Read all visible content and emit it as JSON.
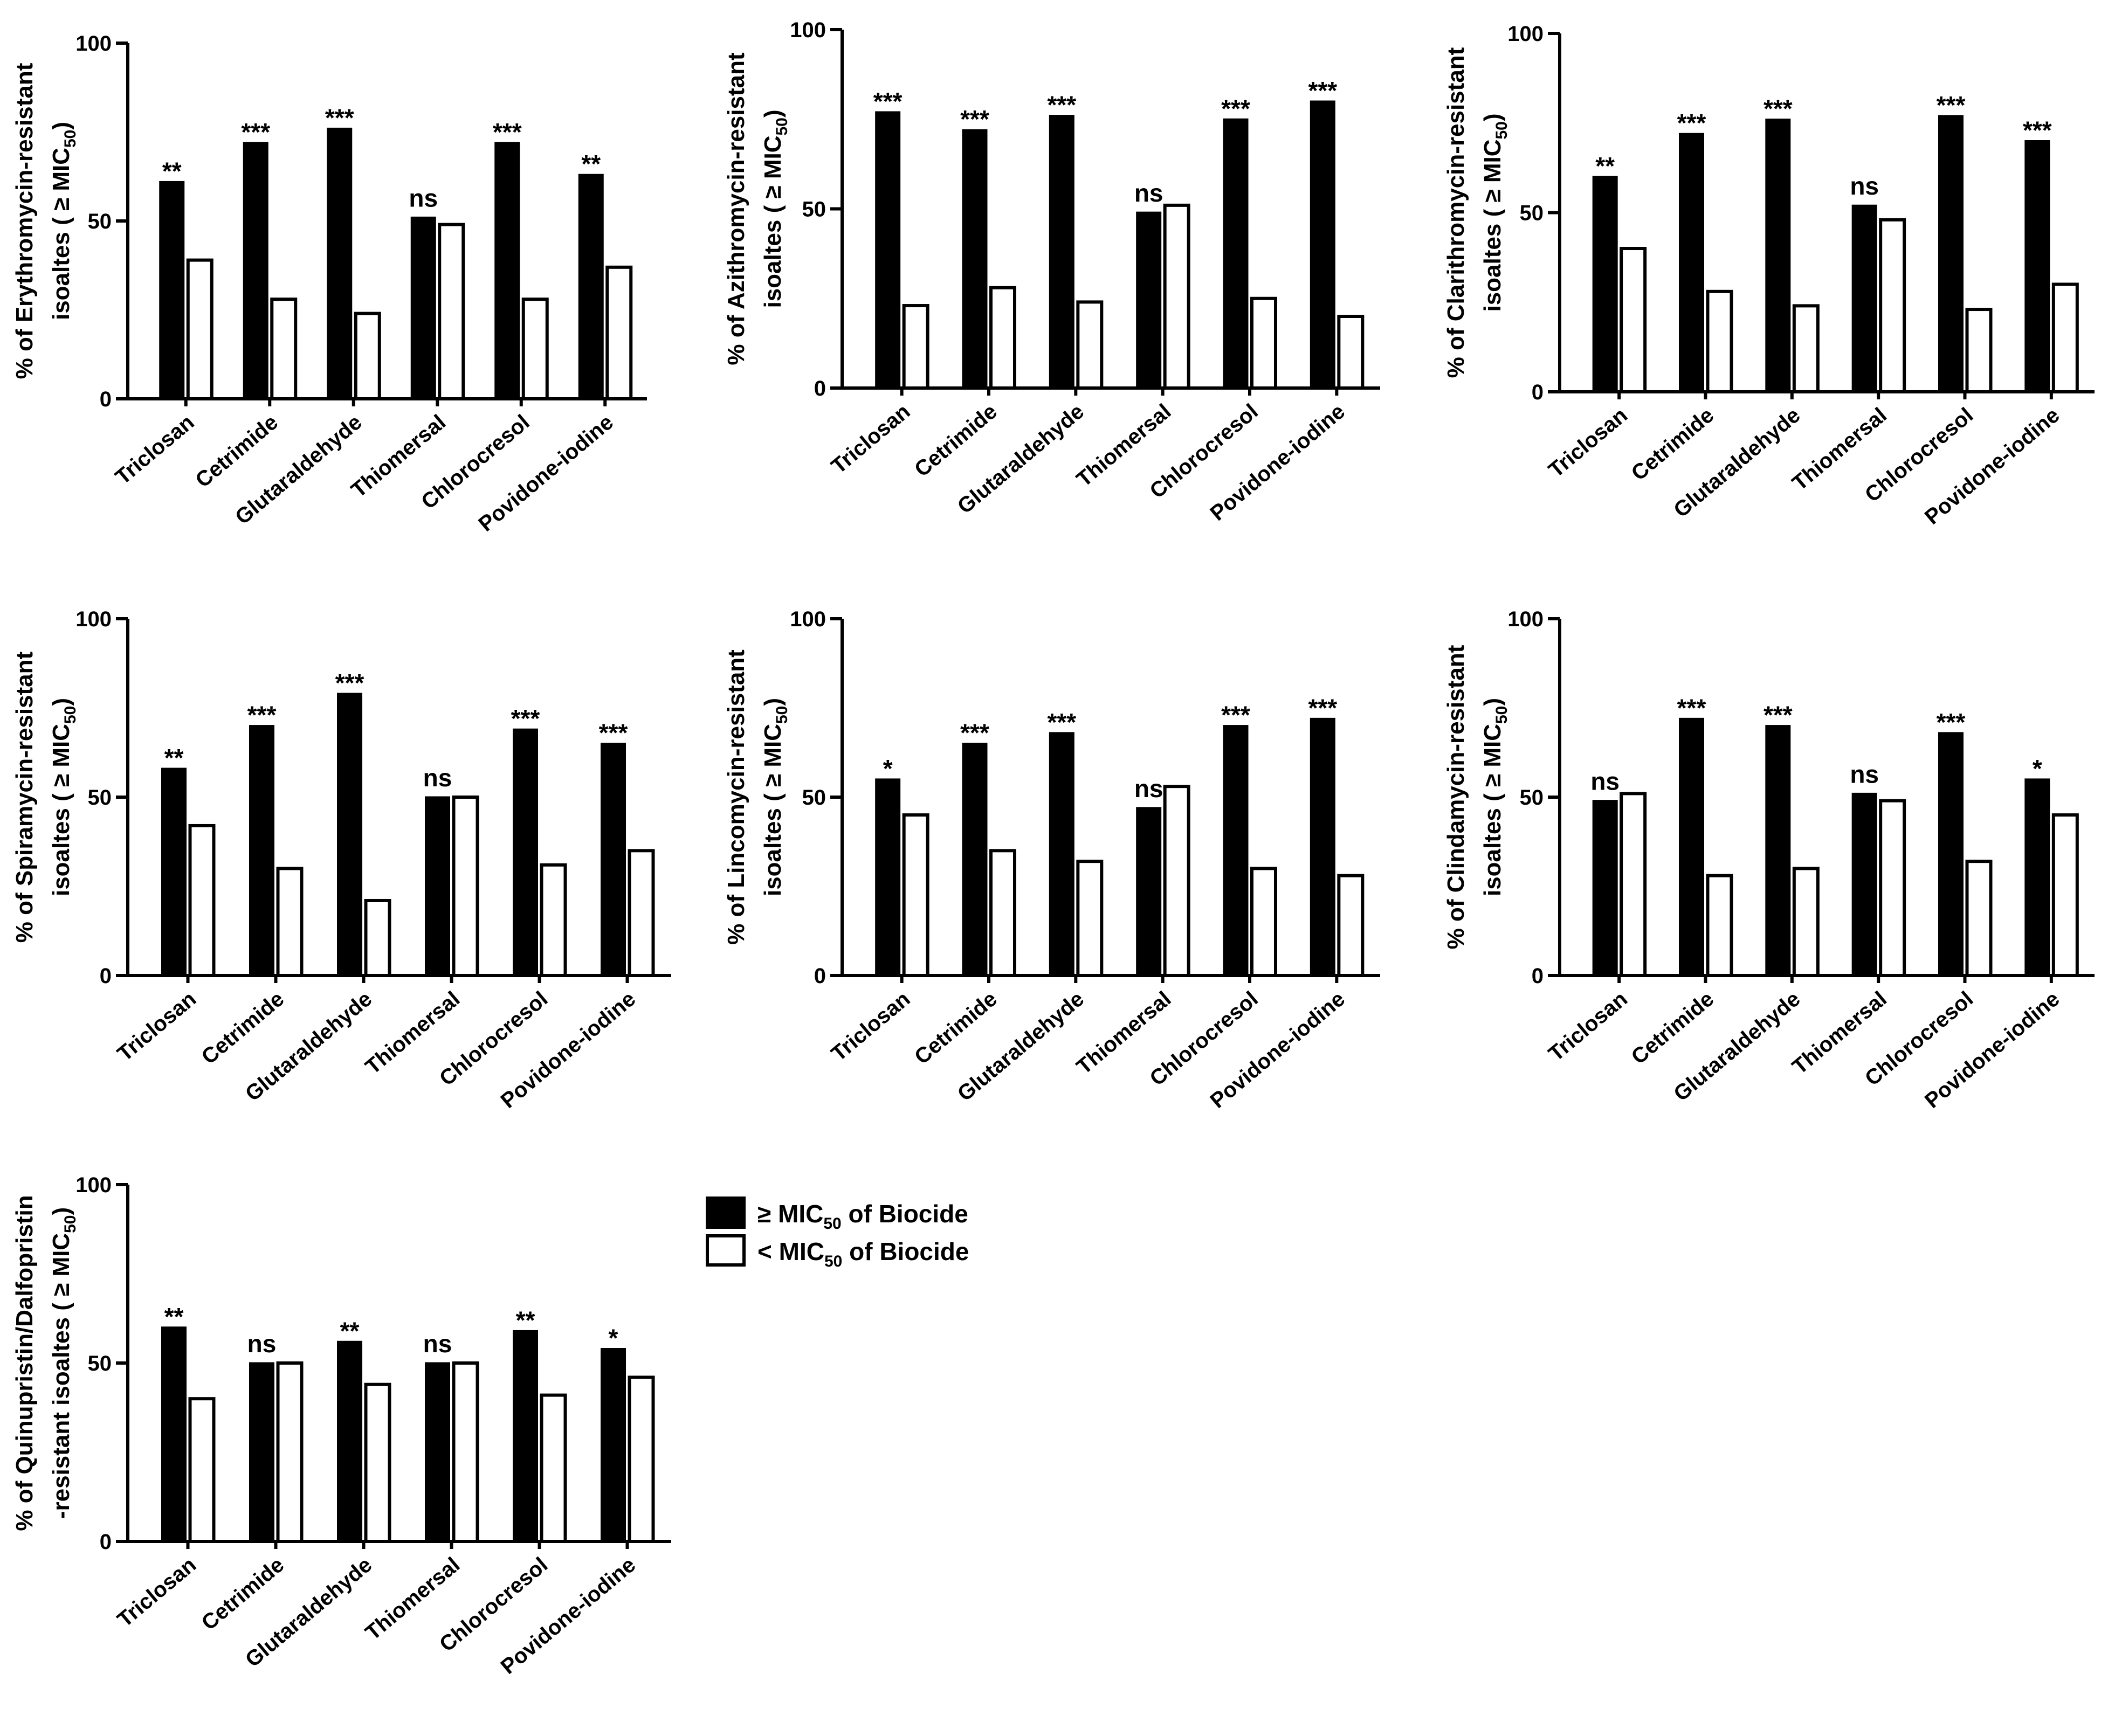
{
  "chart_data": [
    {
      "type": "bar",
      "ylabel": [
        "% of Erythromycin-resistant",
        "isoaltes ( ≥ MIC",
        "50",
        ")"
      ],
      "categories": [
        "Triclosan",
        "Cetrimide",
        "Glutaraldehyde",
        "Thiomersal",
        "Chlorocresol",
        "Povidone-iodine"
      ],
      "series": [
        {
          "name": "≥ MIC50 of Biocide",
          "values": [
            61,
            72,
            76,
            51,
            72,
            63
          ]
        },
        {
          "name": "< MIC50 of Biocide",
          "values": [
            39,
            28,
            24,
            49,
            28,
            37
          ]
        }
      ],
      "significance": [
        "**",
        "***",
        "***",
        "ns",
        "***",
        "**"
      ],
      "ylim": [
        0,
        100
      ],
      "yticks": [
        "0",
        "50",
        "100"
      ]
    },
    {
      "type": "bar",
      "ylabel": [
        "% of Azithromycin-resistant",
        "isoaltes ( ≥ MIC",
        "50",
        ")"
      ],
      "categories": [
        "Triclosan",
        "Cetrimide",
        "Glutaraldehyde",
        "Thiomersal",
        "Chlorocresol",
        "Povidone-iodine"
      ],
      "series": [
        {
          "name": "≥ MIC50 of Biocide",
          "values": [
            77,
            72,
            76,
            49,
            75,
            80
          ]
        },
        {
          "name": "< MIC50 of Biocide",
          "values": [
            23,
            28,
            24,
            51,
            25,
            20
          ]
        }
      ],
      "significance": [
        "***",
        "***",
        "***",
        "ns",
        "***",
        "***"
      ],
      "ylim": [
        0,
        100
      ],
      "yticks": [
        "0",
        "50",
        "100"
      ]
    },
    {
      "type": "bar",
      "ylabel": [
        "% of Clarithromycin-resistant",
        "isoaltes ( ≥ MIC",
        "50",
        ")"
      ],
      "categories": [
        "Triclosan",
        "Cetrimide",
        "Glutaraldehyde",
        "Thiomersal",
        "Chlorocresol",
        "Povidone-iodine"
      ],
      "series": [
        {
          "name": "≥ MIC50 of Biocide",
          "values": [
            60,
            72,
            76,
            52,
            77,
            70
          ]
        },
        {
          "name": "< MIC50 of Biocide",
          "values": [
            40,
            28,
            24,
            48,
            23,
            30
          ]
        }
      ],
      "significance": [
        "**",
        "***",
        "***",
        "ns",
        "***",
        "***"
      ],
      "ylim": [
        0,
        100
      ],
      "yticks": [
        "0",
        "50",
        "100"
      ]
    },
    {
      "type": "bar",
      "ylabel": [
        "% of Spiramycin-resistant",
        "isoaltes ( ≥ MIC",
        "50",
        ")"
      ],
      "categories": [
        "Triclosan",
        "Cetrimide",
        "Glutaraldehyde",
        "Thiomersal",
        "Chlorocresol",
        "Povidone-iodine"
      ],
      "series": [
        {
          "name": "≥ MIC50 of Biocide",
          "values": [
            58,
            70,
            79,
            50,
            69,
            65
          ]
        },
        {
          "name": "< MIC50 of Biocide",
          "values": [
            42,
            30,
            21,
            50,
            31,
            35
          ]
        }
      ],
      "significance": [
        "**",
        "***",
        "***",
        "ns",
        "***",
        "***"
      ],
      "ylim": [
        0,
        100
      ],
      "yticks": [
        "0",
        "50",
        "100"
      ]
    },
    {
      "type": "bar",
      "ylabel": [
        "% of Lincomycin-resistant",
        "isoaltes ( ≥ MIC",
        "50",
        ")"
      ],
      "categories": [
        "Triclosan",
        "Cetrimide",
        "Glutaraldehyde",
        "Thiomersal",
        "Chlorocresol",
        "Povidone-iodine"
      ],
      "series": [
        {
          "name": "≥ MIC50 of Biocide",
          "values": [
            55,
            65,
            68,
            47,
            70,
            72
          ]
        },
        {
          "name": "< MIC50 of Biocide",
          "values": [
            45,
            35,
            32,
            53,
            30,
            28
          ]
        }
      ],
      "significance": [
        "*",
        "***",
        "***",
        "ns",
        "***",
        "***"
      ],
      "ylim": [
        0,
        100
      ],
      "yticks": [
        "0",
        "50",
        "100"
      ]
    },
    {
      "type": "bar",
      "ylabel": [
        "% of Clindamycin-resistant",
        "isoaltes ( ≥ MIC",
        "50",
        ")"
      ],
      "categories": [
        "Triclosan",
        "Cetrimide",
        "Glutaraldehyde",
        "Thiomersal",
        "Chlorocresol",
        "Povidone-iodine"
      ],
      "series": [
        {
          "name": "≥ MIC50 of Biocide",
          "values": [
            49,
            72,
            70,
            51,
            68,
            55
          ]
        },
        {
          "name": "< MIC50 of Biocide",
          "values": [
            51,
            28,
            30,
            49,
            32,
            45
          ]
        }
      ],
      "significance": [
        "ns",
        "***",
        "***",
        "ns",
        "***",
        "*"
      ],
      "ylim": [
        0,
        100
      ],
      "yticks": [
        "0",
        "50",
        "100"
      ]
    },
    {
      "type": "bar",
      "ylabel": [
        "% of Quinupristin/Dalfopristin",
        "-resistant isoaltes ( ≥ MIC",
        "50",
        ")"
      ],
      "categories": [
        "Triclosan",
        "Cetrimide",
        "Glutaraldehyde",
        "Thiomersal",
        "Chlorocresol",
        "Povidone-iodine"
      ],
      "series": [
        {
          "name": "≥ MIC50 of Biocide",
          "values": [
            60,
            50,
            56,
            50,
            59,
            54
          ]
        },
        {
          "name": "< MIC50 of Biocide",
          "values": [
            40,
            50,
            44,
            50,
            41,
            46
          ]
        }
      ],
      "significance": [
        "**",
        "ns",
        "**",
        "ns",
        "**",
        "*"
      ],
      "ylim": [
        0,
        100
      ],
      "yticks": [
        "0",
        "50",
        "100"
      ]
    }
  ],
  "legend": {
    "items": [
      {
        "prefix": "≥ MIC",
        "sub": "50",
        "suffix": " of Biocide",
        "fill": "#000000"
      },
      {
        "prefix": "< MIC",
        "sub": "50",
        "suffix": " of Biocide",
        "fill": "#ffffff"
      }
    ]
  },
  "colors": {
    "filled": "#000000",
    "open": "#ffffff",
    "stroke": "#000000"
  }
}
